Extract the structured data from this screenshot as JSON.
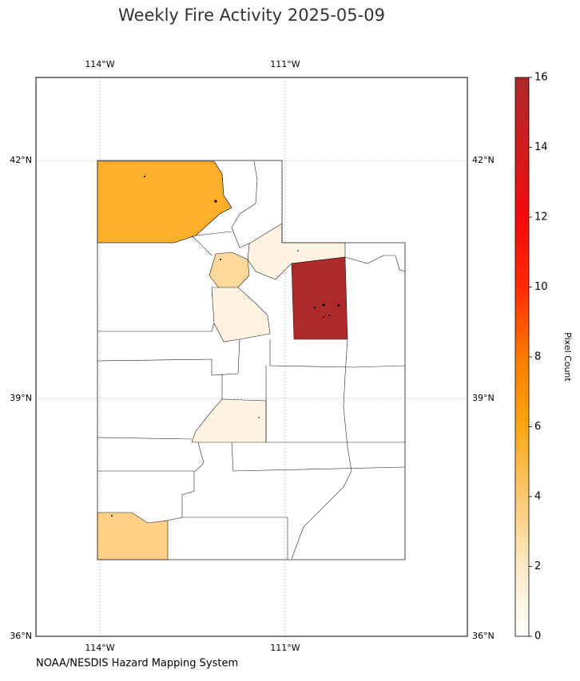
{
  "title": "Weekly Fire Activity 2025-05-09",
  "source": "NOAA/NESDIS Hazard Mapping System",
  "map": {
    "lon_ticks": [
      {
        "value": -114,
        "label": "114°W"
      },
      {
        "value": -111,
        "label": "111°W"
      }
    ],
    "lat_ticks": [
      {
        "value": 42,
        "label": "42°N"
      },
      {
        "value": 39,
        "label": "39°N"
      },
      {
        "value": 36,
        "label": "36°N"
      }
    ],
    "grid": true,
    "region_values": [
      5.5,
      3,
      1,
      16,
      1,
      1,
      3.5
    ]
  },
  "colorbar": {
    "label": "Pixel Count",
    "lim": [
      0,
      16
    ],
    "ticks": [
      0,
      2,
      4,
      6,
      8,
      10,
      12,
      14,
      16
    ],
    "colors": [
      "#ffffff",
      "#ffe9c4",
      "#ffc870",
      "#ffa612",
      "#ff7a00",
      "#ff2a00",
      "#f00a0a",
      "#d01c1c",
      "#ad2828"
    ]
  }
}
